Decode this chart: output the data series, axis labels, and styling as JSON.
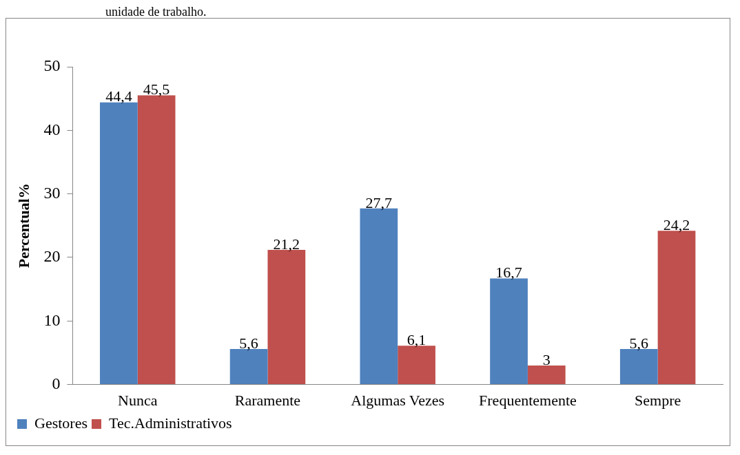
{
  "chart_data": {
    "type": "bar",
    "annotations": [
      "unidade de trabalho."
    ],
    "ylabel": "Percentual%",
    "categories": [
      "Nunca",
      "Raramente",
      "Algumas Vezes",
      "Frequentemente",
      "Sempre"
    ],
    "series": [
      {
        "name": "Gestores",
        "color": "#4f81bd",
        "values": [
          44.4,
          5.6,
          27.7,
          16.7,
          5.6
        ],
        "value_labels": [
          "44,4",
          "5,6",
          "27,7",
          "16,7",
          "5,6"
        ]
      },
      {
        "name": "Tec.Administrativos",
        "color": "#c0504d",
        "values": [
          45.5,
          21.2,
          6.1,
          3,
          24.2
        ],
        "value_labels": [
          "45,5",
          "21,2",
          "6,1",
          "3",
          "24,2"
        ]
      }
    ],
    "ylim": [
      0,
      50
    ],
    "yticks": [
      0,
      10,
      20,
      30,
      40,
      50
    ],
    "grid": false,
    "legend": "bottom left"
  }
}
